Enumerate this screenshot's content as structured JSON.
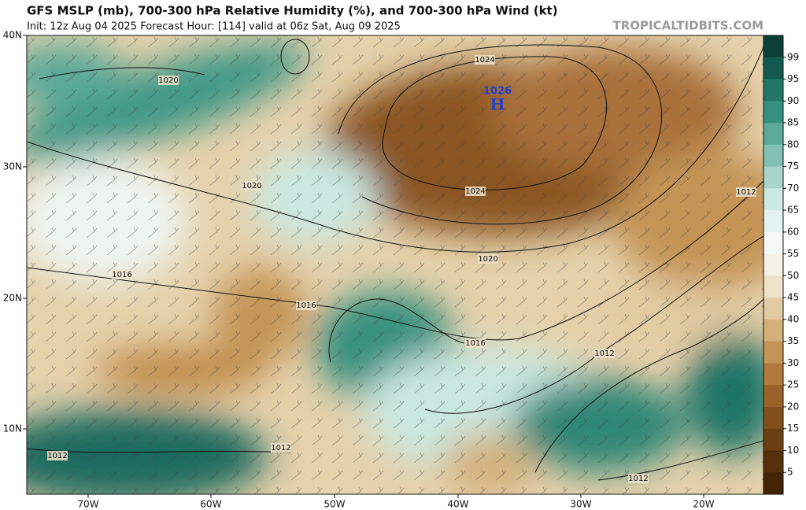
{
  "header": {
    "title": "GFS MSLP (mb), 700-300 hPa Relative Humidity (%), and 700-300 hPa Wind (kt)",
    "subtitle": "Init: 12z Aug 04 2025   Forecast Hour: [114]   valid at 06z Sat, Aug 09 2025",
    "site": "TROPICALTIDBITS.COM"
  },
  "map": {
    "lat_labels": [
      "40N",
      "30N",
      "20N",
      "10N"
    ],
    "lon_labels": [
      "70W",
      "60W",
      "50W",
      "40W",
      "30W",
      "20W"
    ],
    "isobar_labels": [
      "1024",
      "1024",
      "1020",
      "1020",
      "1020",
      "1016",
      "1016",
      "1016",
      "1012",
      "1012",
      "1012",
      "1012",
      "1012"
    ],
    "high": {
      "pressure": "1026",
      "label": "H"
    }
  },
  "colorbar": {
    "ticks": [
      99,
      95,
      90,
      85,
      80,
      75,
      70,
      65,
      60,
      55,
      50,
      45,
      40,
      35,
      30,
      25,
      20,
      15,
      10,
      5
    ],
    "colors": [
      "#0b3f38",
      "#125a4f",
      "#1f7567",
      "#35907f",
      "#5aa999",
      "#82c0b3",
      "#a8d6cc",
      "#cbe8e1",
      "#e4f3ef",
      "#f3f8f5",
      "#f6f1e6",
      "#eee2c8",
      "#e2cba2",
      "#d4b07a",
      "#c49456",
      "#b07a3c",
      "#9a6329",
      "#834f1c",
      "#6c3f12",
      "#56300a",
      "#432505"
    ]
  }
}
